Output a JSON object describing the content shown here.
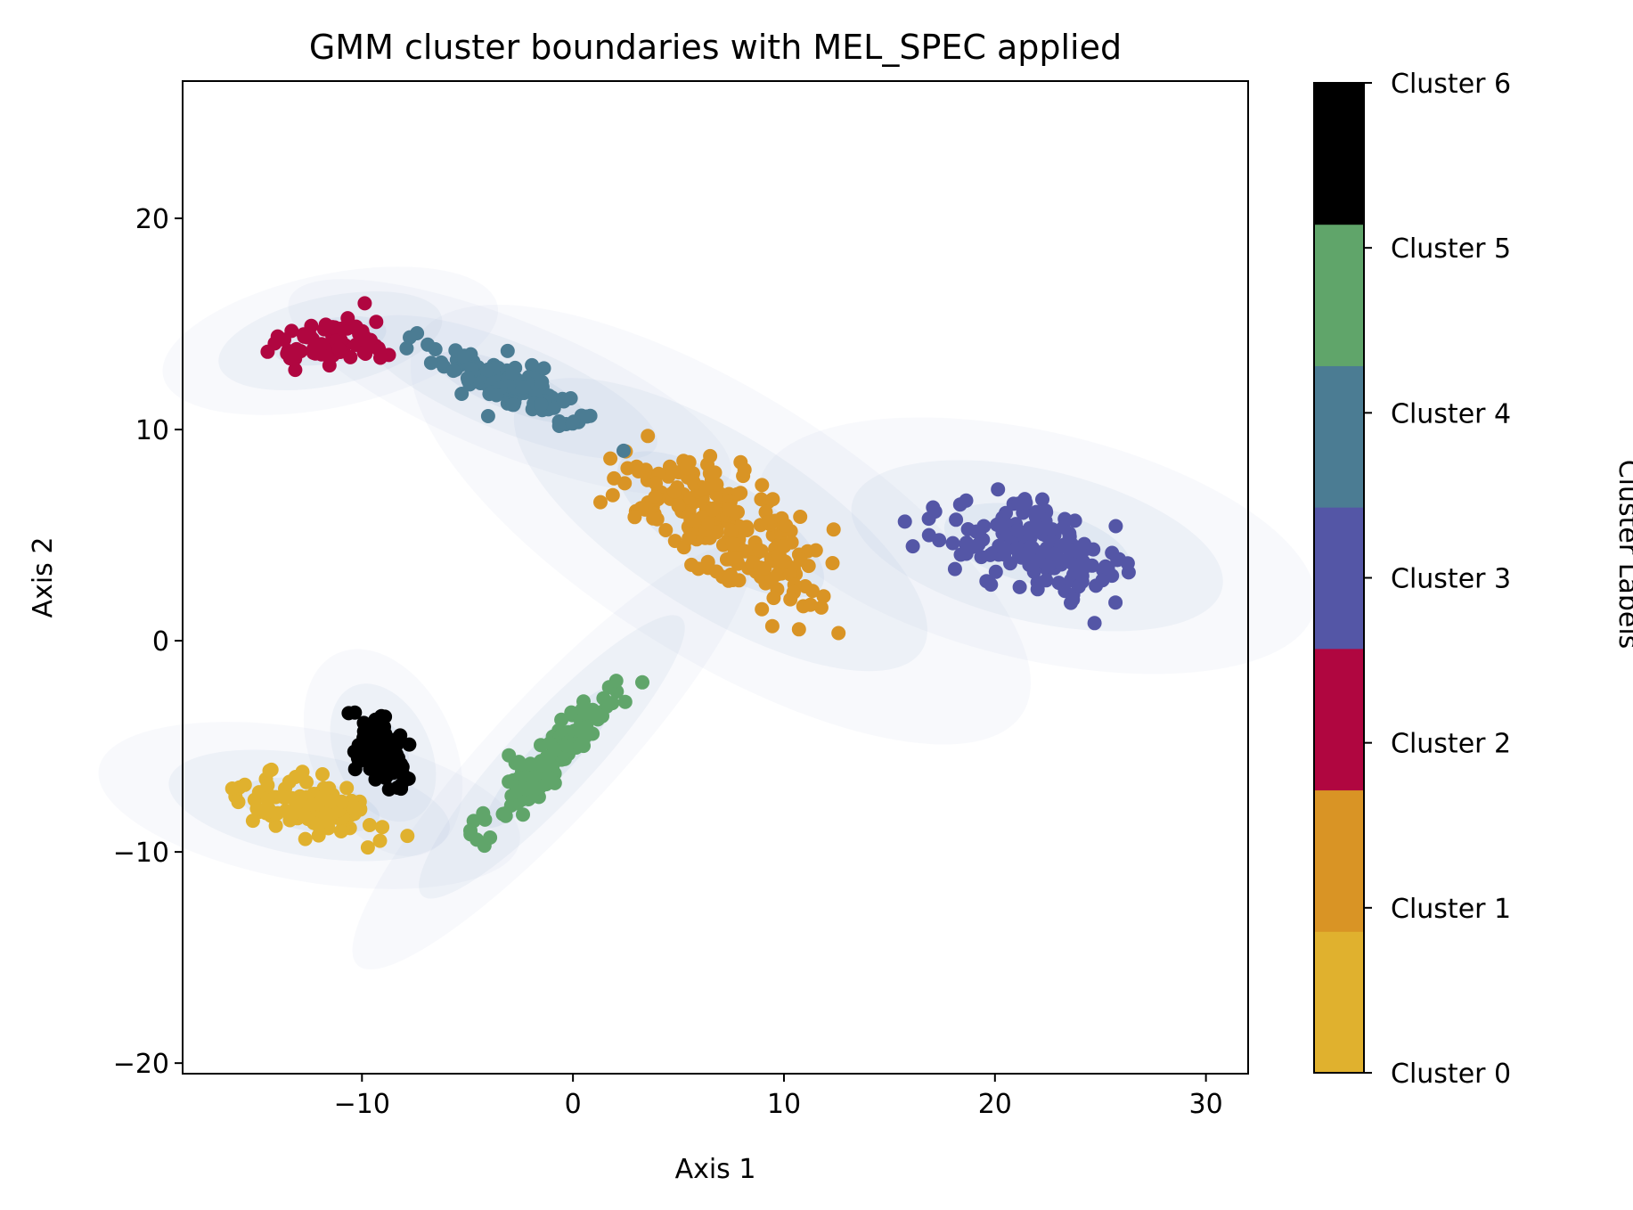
{
  "chart_data": {
    "type": "scatter",
    "title": "GMM cluster boundaries with MEL_SPEC applied",
    "xlabel": "Axis 1",
    "ylabel": "Axis 2",
    "xlim": [
      -18.5,
      32
    ],
    "ylim": [
      -20.5,
      26.5
    ],
    "xticks": [
      -10,
      0,
      10,
      20,
      30
    ],
    "xtick_labels": [
      "−10",
      "0",
      "10",
      "20",
      "30"
    ],
    "yticks": [
      -20,
      -10,
      0,
      10,
      20
    ],
    "ytick_labels": [
      "−20",
      "−10",
      "0",
      "10",
      "20"
    ],
    "grid": false,
    "colorbar": {
      "label": "Cluster Labels",
      "entries": [
        {
          "label": "Cluster 0",
          "color": "#e0b12e"
        },
        {
          "label": "Cluster 1",
          "color": "#d99425"
        },
        {
          "label": "Cluster 2",
          "color": "#b00640"
        },
        {
          "label": "Cluster 3",
          "color": "#5456a6"
        },
        {
          "label": "Cluster 4",
          "color": "#4b7c93"
        },
        {
          "label": "Cluster 5",
          "color": "#60a56a"
        },
        {
          "label": "Cluster 6",
          "color": "#000000"
        }
      ]
    },
    "gmm_boundary_color": "#b7c9de",
    "components": [
      {
        "cluster": 0,
        "mean": [
          -12.5,
          -7.8
        ],
        "spread": [
          4.5,
          1.6
        ],
        "angle": -10
      },
      {
        "cluster": 1,
        "mean": [
          7.0,
          5.5
        ],
        "spread": [
          7.5,
          2.8
        ],
        "angle": -32
      },
      {
        "cluster": 2,
        "mean": [
          -11.5,
          14.2
        ],
        "spread": [
          3.6,
          1.4
        ],
        "angle": 12
      },
      {
        "cluster": 3,
        "mean": [
          22.0,
          4.5
        ],
        "spread": [
          6.0,
          2.4
        ],
        "angle": -13
      },
      {
        "cluster": 4,
        "mean": [
          -3.0,
          12.0
        ],
        "spread": [
          5.0,
          1.4
        ],
        "angle": -22
      },
      {
        "cluster": 5,
        "mean": [
          -1.0,
          -5.5
        ],
        "spread": [
          6.0,
          1.3
        ],
        "angle": 47
      },
      {
        "cluster": 6,
        "mean": [
          -9.0,
          -5.3
        ],
        "spread": [
          1.5,
          2.3
        ],
        "angle": 25
      }
    ],
    "points_per_cluster": [
      110,
      230,
      75,
      160,
      130,
      130,
      95
    ]
  }
}
